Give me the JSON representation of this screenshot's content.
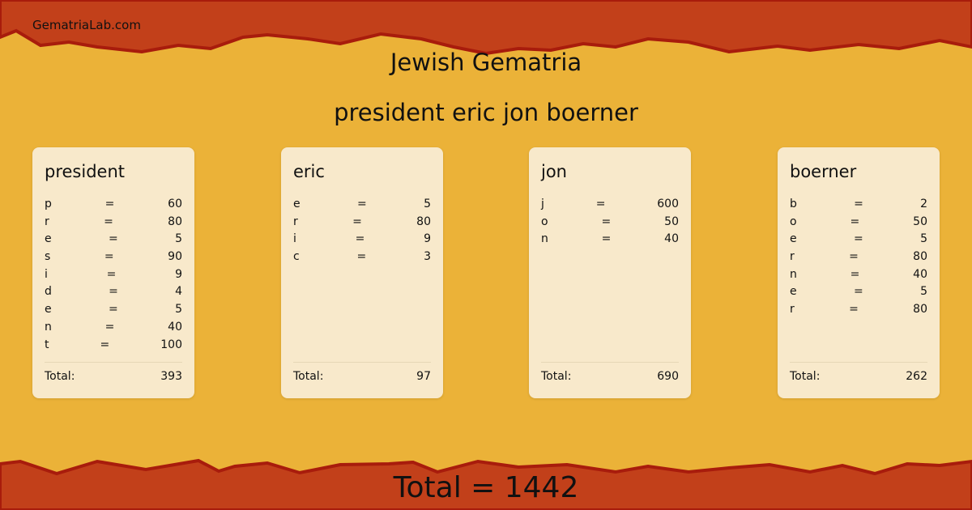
{
  "site": "GematriaLab.com",
  "title": "Jewish Gematria",
  "phrase": "president eric jon boerner",
  "colors": {
    "background": "#ebb238",
    "band": "#c2401a",
    "edge": "#a81c0c",
    "card": "#f8e9cb"
  },
  "total_label": "Total:",
  "equals": "=",
  "words": [
    {
      "word": "president",
      "total": "393",
      "letters": [
        [
          "p",
          "60"
        ],
        [
          "r",
          "80"
        ],
        [
          "e",
          "5"
        ],
        [
          "s",
          "90"
        ],
        [
          "i",
          "9"
        ],
        [
          "d",
          "4"
        ],
        [
          "e",
          "5"
        ],
        [
          "n",
          "40"
        ],
        [
          "t",
          "100"
        ]
      ]
    },
    {
      "word": "eric",
      "total": "97",
      "letters": [
        [
          "e",
          "5"
        ],
        [
          "r",
          "80"
        ],
        [
          "i",
          "9"
        ],
        [
          "c",
          "3"
        ]
      ]
    },
    {
      "word": "jon",
      "total": "690",
      "letters": [
        [
          "j",
          "600"
        ],
        [
          "o",
          "50"
        ],
        [
          "n",
          "40"
        ]
      ]
    },
    {
      "word": "boerner",
      "total": "262",
      "letters": [
        [
          "b",
          "2"
        ],
        [
          "o",
          "50"
        ],
        [
          "e",
          "5"
        ],
        [
          "r",
          "80"
        ],
        [
          "n",
          "40"
        ],
        [
          "e",
          "5"
        ],
        [
          "r",
          "80"
        ]
      ]
    }
  ],
  "grand_total": "Total = 1442"
}
